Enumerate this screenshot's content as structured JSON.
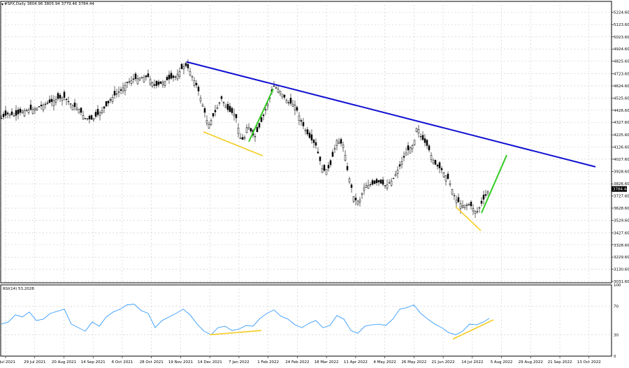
{
  "chart_data": [
    {
      "type": "candlestick",
      "title": "#SPX,Daily  3804.96 3805.94 3779.46 3784.44",
      "symbol": "#SPX",
      "timeframe": "Daily",
      "last_ohlc": {
        "open": 3804.96,
        "high": 3805.94,
        "low": 3779.46,
        "close": 3784.44
      },
      "current_price_label": "3784.44",
      "y_ticks": [
        "5224.60",
        "5123.60",
        "5023.60",
        "4924.60",
        "4825.60",
        "4723.60",
        "4624.60",
        "4525.60",
        "4426.60",
        "4327.60",
        "4225.60",
        "4126.60",
        "4027.60",
        "3928.60",
        "3826.60",
        "3727.60",
        "3628.60",
        "3529.60",
        "3427.60",
        "3328.60",
        "3229.60",
        "3130.60",
        "3031.60"
      ],
      "ylim": [
        3020,
        5290
      ],
      "x_ticks": [
        "7 Jul 2021",
        "29 Jul 2021",
        "20 Aug 2021",
        "14 Sep 2021",
        "6 Oct 2021",
        "28 Oct 2021",
        "19 Nov 2021",
        "14 Dec 2021",
        "7 Jan 2022",
        "1 Feb 2022",
        "24 Feb 2022",
        "18 Mar 2022",
        "11 Apr 2022",
        "4 May 2022",
        "26 May 2022",
        "21 Jun 2022",
        "14 Jul 2022",
        "5 Aug 2022",
        "29 Aug 2022",
        "21 Sep 2022",
        "13 Oct 2022"
      ],
      "price_path": [
        [
          0,
          4360
        ],
        [
          10,
          4400
        ],
        [
          20,
          4380
        ],
        [
          30,
          4420
        ],
        [
          40,
          4430
        ],
        [
          50,
          4440
        ],
        [
          60,
          4470
        ],
        [
          70,
          4490
        ],
        [
          80,
          4520
        ],
        [
          90,
          4530
        ],
        [
          100,
          4470
        ],
        [
          110,
          4440
        ],
        [
          120,
          4360
        ],
        [
          130,
          4350
        ],
        [
          140,
          4400
        ],
        [
          150,
          4460
        ],
        [
          160,
          4540
        ],
        [
          170,
          4580
        ],
        [
          180,
          4650
        ],
        [
          190,
          4680
        ],
        [
          200,
          4690
        ],
        [
          210,
          4700
        ],
        [
          220,
          4620
        ],
        [
          230,
          4650
        ],
        [
          240,
          4680
        ],
        [
          250,
          4700
        ],
        [
          260,
          4780
        ],
        [
          265,
          4790
        ],
        [
          270,
          4740
        ],
        [
          280,
          4620
        ],
        [
          290,
          4430
        ],
        [
          296,
          4300
        ],
        [
          305,
          4400
        ],
        [
          315,
          4520
        ],
        [
          325,
          4420
        ],
        [
          335,
          4390
        ],
        [
          342,
          4200
        ],
        [
          347,
          4180
        ],
        [
          352,
          4310
        ],
        [
          362,
          4200
        ],
        [
          370,
          4300
        ],
        [
          380,
          4460
        ],
        [
          390,
          4620
        ],
        [
          398,
          4590
        ],
        [
          410,
          4490
        ],
        [
          420,
          4470
        ],
        [
          430,
          4320
        ],
        [
          440,
          4210
        ],
        [
          450,
          4140
        ],
        [
          460,
          3930
        ],
        [
          470,
          3960
        ],
        [
          480,
          4180
        ],
        [
          490,
          4140
        ],
        [
          495,
          3940
        ],
        [
          505,
          3700
        ],
        [
          512,
          3680
        ],
        [
          520,
          3810
        ],
        [
          530,
          3820
        ],
        [
          540,
          3840
        ],
        [
          550,
          3810
        ],
        [
          560,
          3860
        ],
        [
          570,
          3970
        ],
        [
          580,
          4090
        ],
        [
          590,
          4150
        ],
        [
          595,
          4310
        ],
        [
          600,
          4210
        ],
        [
          610,
          4130
        ],
        [
          620,
          3990
        ],
        [
          630,
          3940
        ],
        [
          640,
          3860
        ],
        [
          650,
          3700
        ],
        [
          660,
          3650
        ],
        [
          670,
          3660
        ],
        [
          680,
          3590
        ],
        [
          690,
          3700
        ],
        [
          698,
          3784
        ]
      ]
    },
    {
      "type": "line",
      "title": "RSI(14) 53.2028",
      "indicator": "RSI(14)",
      "value": 53.2028,
      "y_ticks": [
        "100",
        "70",
        "30",
        "0"
      ],
      "ylim": [
        0,
        100
      ],
      "levels": [
        70,
        30
      ],
      "rsi_path": [
        [
          0,
          45
        ],
        [
          10,
          48
        ],
        [
          20,
          58
        ],
        [
          30,
          55
        ],
        [
          40,
          62
        ],
        [
          50,
          50
        ],
        [
          60,
          52
        ],
        [
          70,
          60
        ],
        [
          80,
          63
        ],
        [
          90,
          66
        ],
        [
          100,
          45
        ],
        [
          110,
          40
        ],
        [
          120,
          35
        ],
        [
          130,
          48
        ],
        [
          140,
          42
        ],
        [
          150,
          55
        ],
        [
          160,
          62
        ],
        [
          170,
          66
        ],
        [
          180,
          72
        ],
        [
          190,
          73
        ],
        [
          200,
          64
        ],
        [
          210,
          60
        ],
        [
          220,
          40
        ],
        [
          230,
          50
        ],
        [
          240,
          55
        ],
        [
          250,
          60
        ],
        [
          260,
          66
        ],
        [
          270,
          58
        ],
        [
          280,
          45
        ],
        [
          290,
          35
        ],
        [
          300,
          30
        ],
        [
          310,
          40
        ],
        [
          320,
          42
        ],
        [
          330,
          36
        ],
        [
          340,
          38
        ],
        [
          350,
          43
        ],
        [
          360,
          42
        ],
        [
          370,
          53
        ],
        [
          380,
          60
        ],
        [
          390,
          65
        ],
        [
          400,
          56
        ],
        [
          410,
          52
        ],
        [
          420,
          44
        ],
        [
          430,
          40
        ],
        [
          440,
          46
        ],
        [
          450,
          50
        ],
        [
          460,
          40
        ],
        [
          470,
          43
        ],
        [
          480,
          57
        ],
        [
          490,
          52
        ],
        [
          500,
          36
        ],
        [
          510,
          32
        ],
        [
          520,
          42
        ],
        [
          530,
          44
        ],
        [
          540,
          45
        ],
        [
          550,
          43
        ],
        [
          560,
          52
        ],
        [
          570,
          66
        ],
        [
          580,
          68
        ],
        [
          590,
          72
        ],
        [
          600,
          60
        ],
        [
          610,
          52
        ],
        [
          620,
          45
        ],
        [
          630,
          40
        ],
        [
          640,
          33
        ],
        [
          650,
          30
        ],
        [
          660,
          35
        ],
        [
          670,
          45
        ],
        [
          680,
          44
        ],
        [
          690,
          48
        ],
        [
          698,
          53
        ]
      ]
    }
  ],
  "annotations": {
    "trendline_color": "#1010d0",
    "support_color": "#f5cc22",
    "impulse_color": "#33cc22"
  }
}
